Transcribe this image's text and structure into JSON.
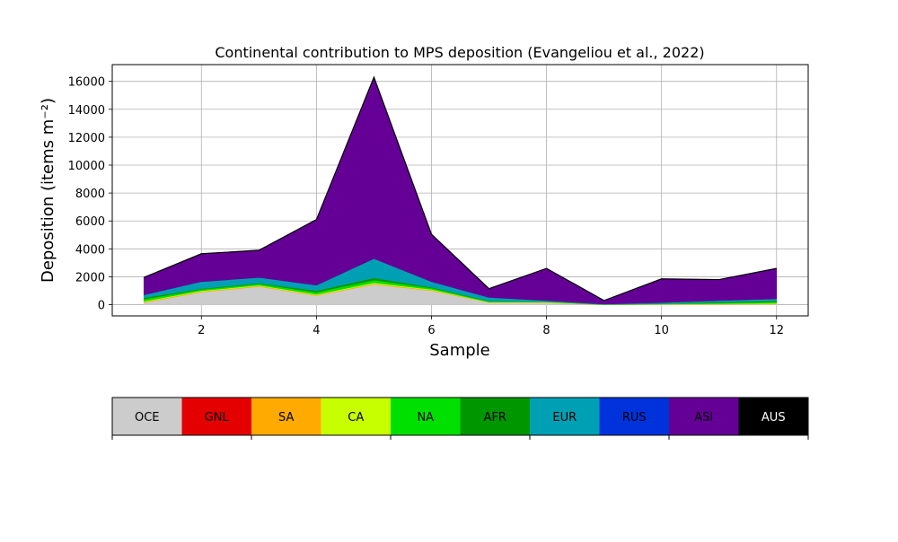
{
  "chart_data": {
    "type": "area",
    "title": "Continental contribution to MPS deposition (Evangeliou et al., 2022)",
    "xlabel": "Sample",
    "ylabel": "Deposition (items m⁻²)",
    "xlim": [
      0.45,
      12.55
    ],
    "ylim": [
      -800,
      17200
    ],
    "xticks": [
      2,
      4,
      6,
      8,
      10,
      12
    ],
    "yticks": [
      0,
      2000,
      4000,
      6000,
      8000,
      10000,
      12000,
      14000,
      16000
    ],
    "grid": true,
    "x": [
      1,
      2,
      3,
      4,
      5,
      6,
      7,
      8,
      9,
      10,
      11,
      12
    ],
    "series": [
      {
        "name": "OCE",
        "color": "#cccccc",
        "values": [
          150,
          900,
          1300,
          650,
          1450,
          1000,
          150,
          150,
          0,
          20,
          30,
          50
        ]
      },
      {
        "name": "GNL",
        "color": "#e50000",
        "values": [
          0,
          0,
          0,
          0,
          0,
          0,
          0,
          0,
          0,
          0,
          0,
          0
        ]
      },
      {
        "name": "SA",
        "color": "#ffaa00",
        "values": [
          50,
          50,
          50,
          50,
          60,
          50,
          20,
          20,
          5,
          10,
          20,
          30
        ]
      },
      {
        "name": "CA",
        "color": "#c8ff00",
        "values": [
          50,
          50,
          50,
          50,
          60,
          50,
          20,
          20,
          5,
          10,
          20,
          30
        ]
      },
      {
        "name": "NA",
        "color": "#00e000",
        "values": [
          150,
          100,
          100,
          150,
          200,
          100,
          50,
          30,
          10,
          30,
          60,
          100
        ]
      },
      {
        "name": "AFR",
        "color": "#009600",
        "values": [
          100,
          50,
          50,
          100,
          150,
          50,
          30,
          20,
          5,
          20,
          50,
          80
        ]
      },
      {
        "name": "EUR",
        "color": "#00a0b4",
        "values": [
          200,
          500,
          400,
          400,
          1380,
          400,
          250,
          60,
          20,
          60,
          120,
          130
        ]
      },
      {
        "name": "RUS",
        "color": "#0032dc",
        "values": [
          0,
          0,
          0,
          0,
          0,
          0,
          0,
          0,
          0,
          0,
          0,
          0
        ]
      },
      {
        "name": "ASI",
        "color": "#640096",
        "values": [
          1250,
          2000,
          1950,
          4700,
          13000,
          3400,
          630,
          2300,
          255,
          1700,
          1500,
          2180
        ]
      },
      {
        "name": "AUS",
        "color": "#000000",
        "values": [
          0,
          0,
          0,
          0,
          0,
          0,
          0,
          0,
          0,
          0,
          0,
          0
        ]
      }
    ],
    "legend_placement": "bottom colorbar"
  }
}
